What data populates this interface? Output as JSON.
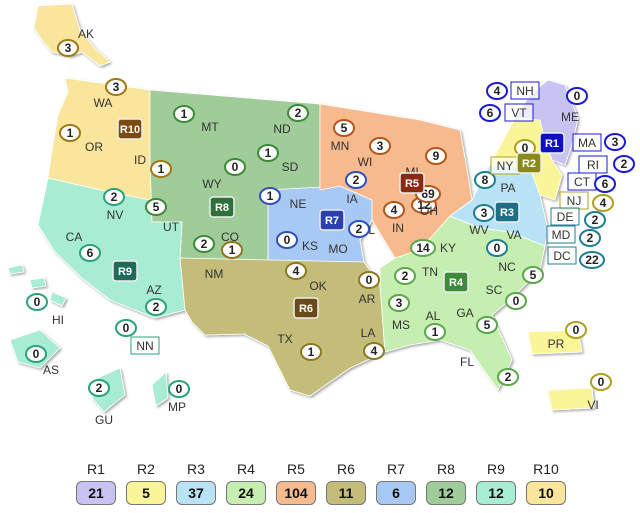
{
  "states": [
    {
      "id": "AK",
      "label": "AK",
      "count": "3"
    },
    {
      "id": "WA",
      "label": "WA",
      "count": "3"
    },
    {
      "id": "OR",
      "label": "OR",
      "count": "1"
    },
    {
      "id": "ID",
      "label": "ID",
      "count": "1"
    },
    {
      "id": "MT",
      "label": "MT",
      "count": "1"
    },
    {
      "id": "ND",
      "label": "ND",
      "count": "2"
    },
    {
      "id": "SD",
      "label": "SD",
      "count": "1"
    },
    {
      "id": "WY",
      "label": "WY",
      "count": "0"
    },
    {
      "id": "NE",
      "label": "NE",
      "count": "1"
    },
    {
      "id": "MN",
      "label": "MN",
      "count": "5"
    },
    {
      "id": "WI",
      "label": "WI",
      "count": "3"
    },
    {
      "id": "MI",
      "label": "MI",
      "count": "9"
    },
    {
      "id": "IA",
      "label": "IA",
      "count": "2"
    },
    {
      "id": "IL",
      "label": "IL",
      "count": "4"
    },
    {
      "id": "IN",
      "label": "IN",
      "count": "12"
    },
    {
      "id": "OH",
      "label": "OH",
      "count": "69"
    },
    {
      "id": "NV",
      "label": "NV",
      "count": "2"
    },
    {
      "id": "UT",
      "label": "UT",
      "count": "5"
    },
    {
      "id": "CO",
      "label": "CO",
      "count": "2"
    },
    {
      "id": "KS",
      "label": "KS",
      "count": "0"
    },
    {
      "id": "MO",
      "label": "MO",
      "count": "2"
    },
    {
      "id": "CA",
      "label": "CA",
      "count": "6"
    },
    {
      "id": "AZ",
      "label": "AZ",
      "count": "2"
    },
    {
      "id": "NM",
      "label": "NM",
      "count": "1"
    },
    {
      "id": "OK",
      "label": "OK",
      "count": "4"
    },
    {
      "id": "AR",
      "label": "AR",
      "count": "0"
    },
    {
      "id": "TX",
      "label": "TX",
      "count": "1"
    },
    {
      "id": "LA",
      "label": "LA",
      "count": "4"
    },
    {
      "id": "KY",
      "label": "KY",
      "count": "14"
    },
    {
      "id": "TN",
      "label": "TN",
      "count": "2"
    },
    {
      "id": "MS",
      "label": "MS",
      "count": "3"
    },
    {
      "id": "AL",
      "label": "AL",
      "count": "1"
    },
    {
      "id": "GA",
      "label": "GA",
      "count": "5"
    },
    {
      "id": "FL",
      "label": "FL",
      "count": "2"
    },
    {
      "id": "SC",
      "label": "SC",
      "count": "0"
    },
    {
      "id": "NC",
      "label": "NC",
      "count": "5"
    },
    {
      "id": "PA",
      "label": "PA",
      "count": "8"
    },
    {
      "id": "WV",
      "label": "WV",
      "count": "3"
    },
    {
      "id": "VA",
      "label": "VA",
      "count": "0"
    },
    {
      "id": "NY",
      "label": "NY",
      "count": "0"
    },
    {
      "id": "NH",
      "label": "NH",
      "count": "4"
    },
    {
      "id": "VT",
      "label": "VT",
      "count": "6"
    },
    {
      "id": "ME",
      "label": "ME",
      "count": "0"
    },
    {
      "id": "MA",
      "label": "MA",
      "count": "3"
    },
    {
      "id": "RI",
      "label": "RI",
      "count": "2"
    },
    {
      "id": "CT",
      "label": "CT",
      "count": "6"
    },
    {
      "id": "NJ",
      "label": "NJ",
      "count": "4"
    },
    {
      "id": "DE",
      "label": "DE",
      "count": "2"
    },
    {
      "id": "MD",
      "label": "MD",
      "count": "2"
    },
    {
      "id": "DC",
      "label": "DC",
      "count": "22"
    },
    {
      "id": "HI",
      "label": "HI",
      "count": "0"
    },
    {
      "id": "AS",
      "label": "AS",
      "count": "0"
    },
    {
      "id": "NN",
      "label": "NN",
      "count": "0"
    },
    {
      "id": "GU",
      "label": "GU",
      "count": "2"
    },
    {
      "id": "MP",
      "label": "MP",
      "count": "0"
    },
    {
      "id": "PR",
      "label": "PR",
      "count": "0"
    },
    {
      "id": "VI",
      "label": "VI",
      "count": "0"
    }
  ],
  "regions": [
    {
      "id": "R1",
      "label": "R1",
      "total": "21",
      "color": "#c7c3f2"
    },
    {
      "id": "R2",
      "label": "R2",
      "total": "5",
      "color": "#fbf59a"
    },
    {
      "id": "R3",
      "label": "R3",
      "total": "37",
      "color": "#b9e3f4"
    },
    {
      "id": "R4",
      "label": "R4",
      "total": "24",
      "color": "#c7eeb1"
    },
    {
      "id": "R5",
      "label": "R5",
      "total": "104",
      "color": "#f7b98e"
    },
    {
      "id": "R6",
      "label": "R6",
      "total": "11",
      "color": "#c4bd7a"
    },
    {
      "id": "R7",
      "label": "R7",
      "total": "6",
      "color": "#a8c9f3"
    },
    {
      "id": "R8",
      "label": "R8",
      "total": "12",
      "color": "#9fcc98"
    },
    {
      "id": "R9",
      "label": "R9",
      "total": "12",
      "color": "#a8ecd4"
    },
    {
      "id": "R10",
      "label": "R10",
      "total": "10",
      "color": "#f9e59b"
    }
  ]
}
